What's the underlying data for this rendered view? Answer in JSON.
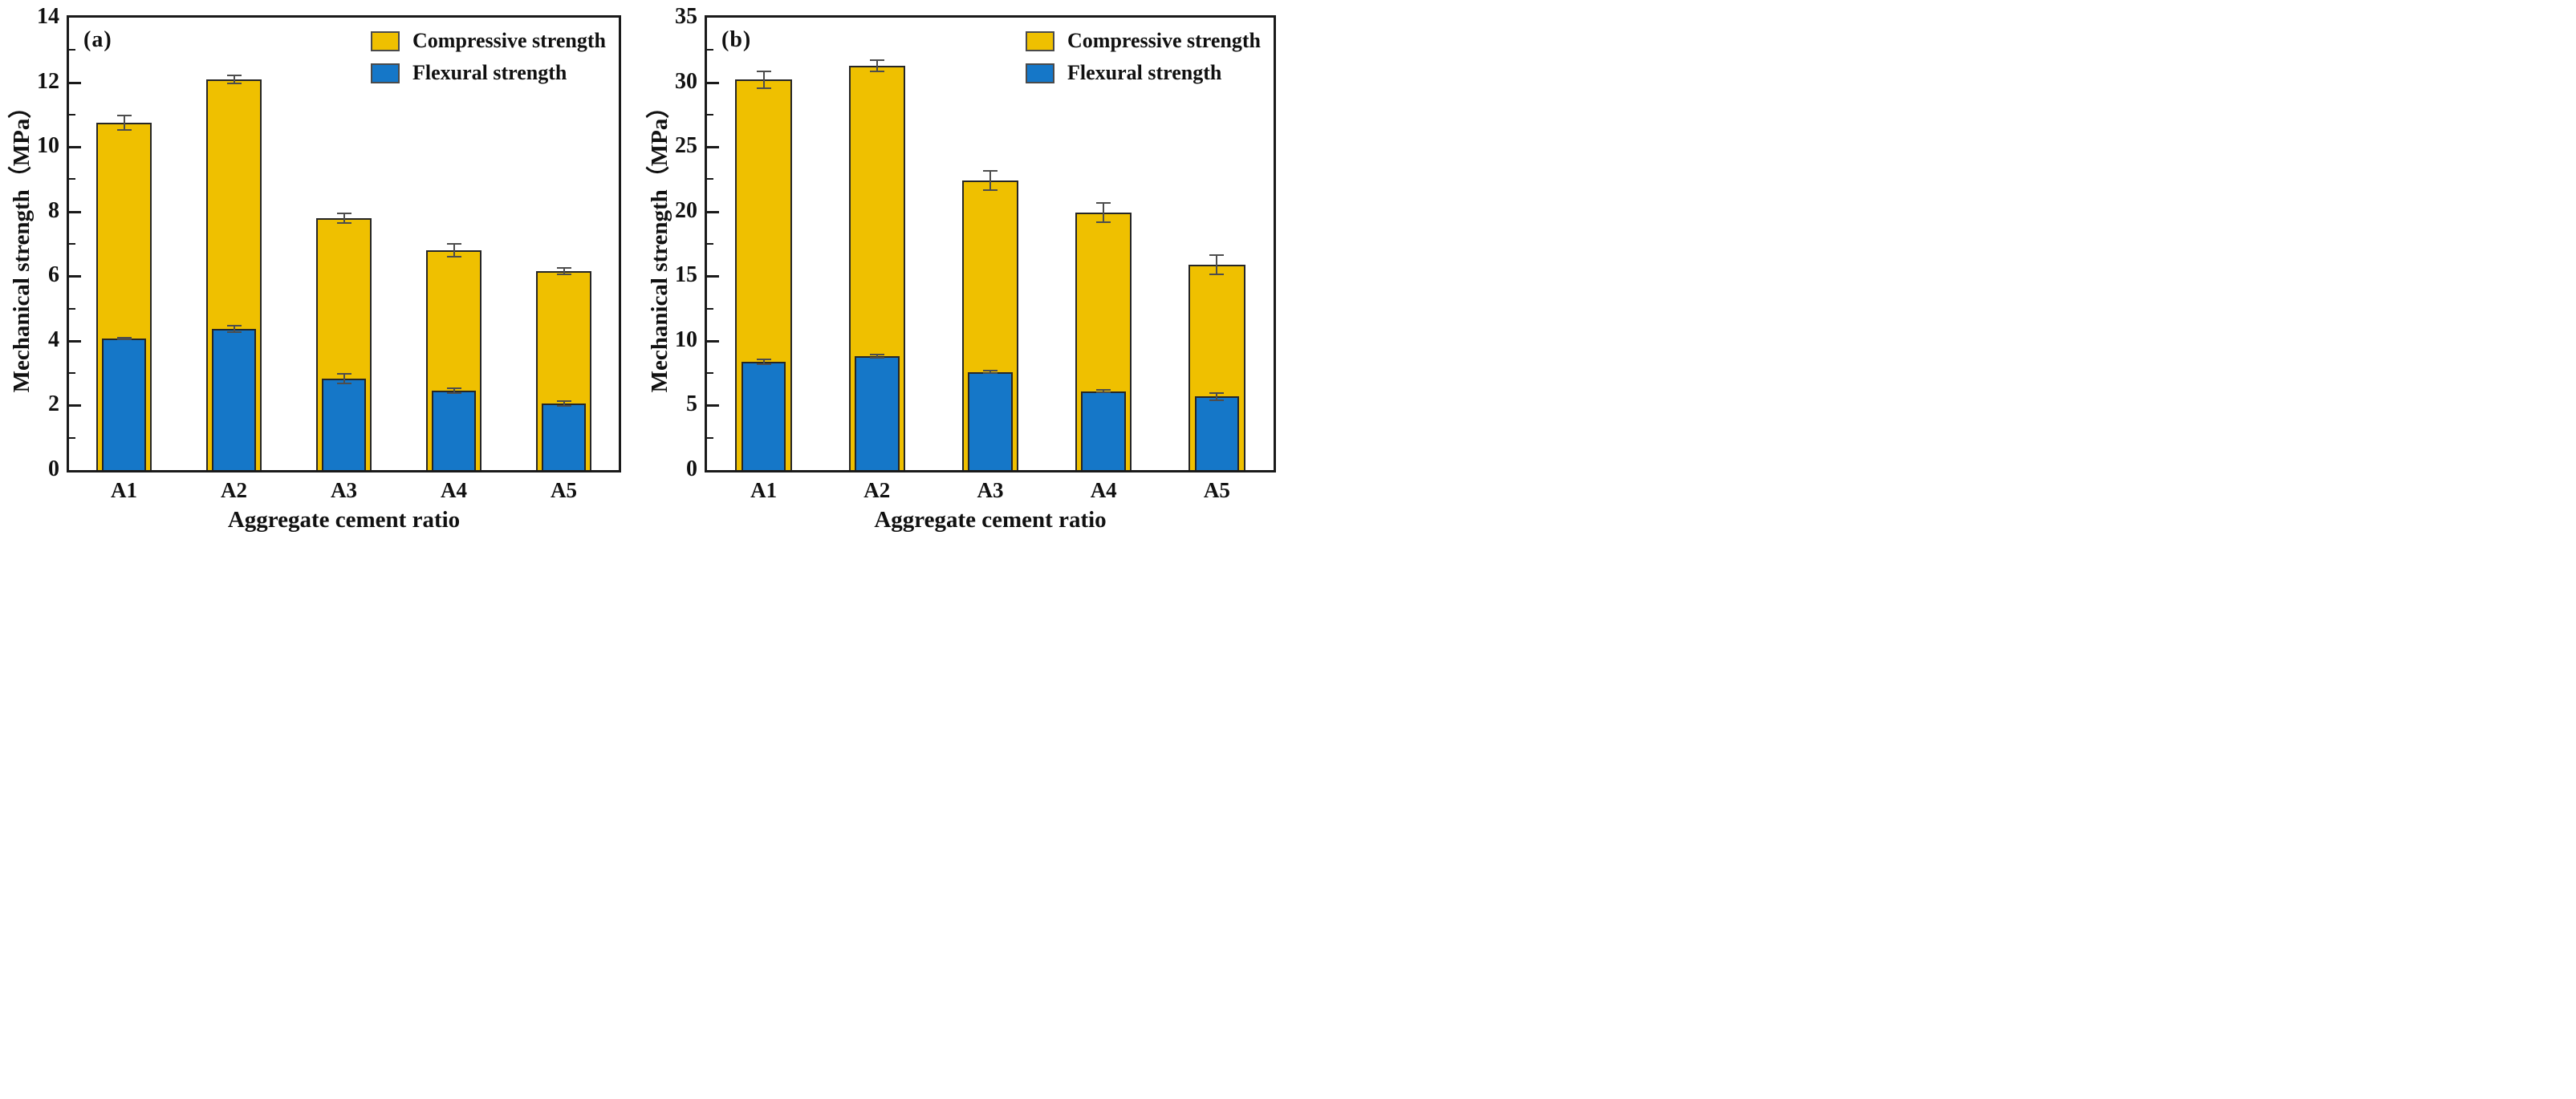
{
  "figure": {
    "background": "#ffffff",
    "axis_color": "#1a1a1a",
    "bar_edge_color": "#262626",
    "errorbar_color": "#4d4d4d"
  },
  "chart_data": [
    {
      "type": "bar",
      "panel_label": "(a)",
      "xlabel": "Aggregate cement ratio",
      "ylabel": "Mechanical strength（MPa）",
      "categories": [
        "A1",
        "A2",
        "A3",
        "A4",
        "A5"
      ],
      "ylim": [
        0,
        14
      ],
      "ytick_major": 2,
      "ytick_minor": 1,
      "grid": false,
      "legend_position": "top-right",
      "series": [
        {
          "name": "Compressive strength",
          "color": "#EFC000",
          "values": [
            10.75,
            12.1,
            7.8,
            6.8,
            6.15
          ],
          "errors": [
            0.25,
            0.15,
            0.18,
            0.22,
            0.12
          ]
        },
        {
          "name": "Flexural strength",
          "color": "#1577C8",
          "values": [
            4.07,
            4.37,
            2.83,
            2.45,
            2.05
          ],
          "errors": [
            0.05,
            0.12,
            0.17,
            0.1,
            0.1
          ]
        }
      ]
    },
    {
      "type": "bar",
      "panel_label": "(b)",
      "xlabel": "Aggregate cement ratio",
      "ylabel": "Mechanical strength（MPa）",
      "categories": [
        "A1",
        "A2",
        "A3",
        "A4",
        "A5"
      ],
      "ylim": [
        0,
        35
      ],
      "ytick_major": 5,
      "ytick_minor": 2.5,
      "grid": false,
      "legend_position": "top-right",
      "series": [
        {
          "name": "Compressive strength",
          "color": "#EFC000",
          "values": [
            30.2,
            31.3,
            22.4,
            19.9,
            15.9
          ],
          "errors": [
            0.7,
            0.5,
            0.8,
            0.8,
            0.8
          ]
        },
        {
          "name": "Flexural strength",
          "color": "#1577C8",
          "values": [
            8.4,
            8.8,
            7.6,
            6.1,
            5.7
          ],
          "errors": [
            0.25,
            0.2,
            0.15,
            0.15,
            0.35
          ]
        }
      ]
    }
  ]
}
